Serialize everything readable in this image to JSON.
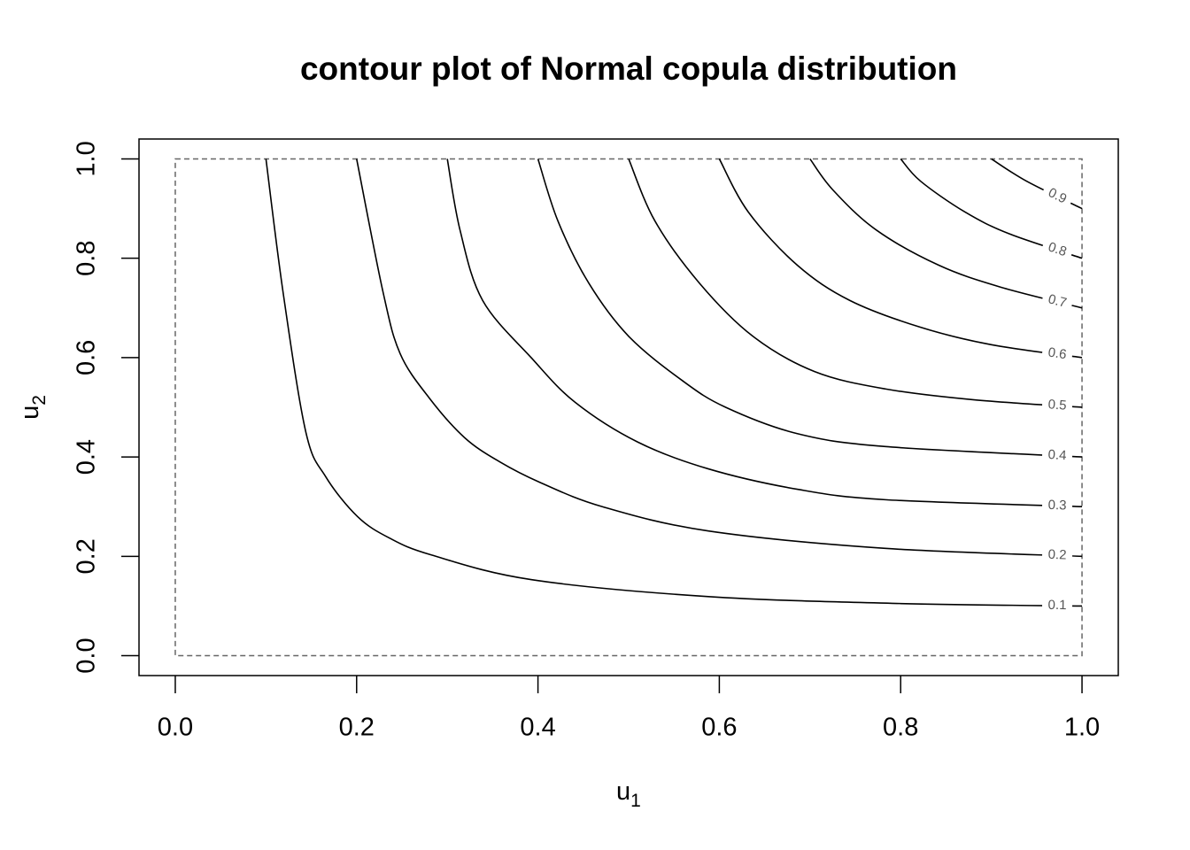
{
  "chart_data": {
    "type": "contour",
    "title": "contour plot of Normal copula distribution",
    "xlabel": {
      "text": "u",
      "sub": "1"
    },
    "ylabel": {
      "text": "u",
      "sub": "2"
    },
    "xlim": [
      -0.04,
      1.04
    ],
    "ylim": [
      -0.04,
      1.04
    ],
    "xticks": [
      {
        "value": 0,
        "label": "0.0"
      },
      0.2,
      0.4,
      0.6,
      0.8,
      {
        "value": 1,
        "label": "1.0"
      }
    ],
    "yticks": [
      {
        "value": 0,
        "label": "0.0"
      },
      0.2,
      0.4,
      0.6,
      0.8,
      {
        "value": 1,
        "label": "1.0"
      }
    ],
    "color": "#000000",
    "series": [
      {
        "level": 0.1,
        "x": [
          0.1,
          0.119,
          0.144,
          0.166,
          0.201,
          0.236,
          0.282,
          0.393,
          0.588,
          0.8,
          1.0
        ],
        "y": [
          1.0,
          0.73,
          0.45,
          0.36,
          0.28,
          0.237,
          0.203,
          0.153,
          0.119,
          0.105,
          0.1
        ]
      },
      {
        "level": 0.2,
        "x": [
          0.2,
          0.229,
          0.248,
          0.28,
          0.319,
          0.358,
          0.402,
          0.471,
          0.588,
          0.783,
          1.0
        ],
        "y": [
          1.0,
          0.733,
          0.608,
          0.519,
          0.439,
          0.39,
          0.349,
          0.3,
          0.251,
          0.216,
          0.2
        ]
      },
      {
        "level": 0.3,
        "x": [
          0.3,
          0.314,
          0.339,
          0.393,
          0.441,
          0.51,
          0.588,
          0.686,
          0.783,
          1.0
        ],
        "y": [
          1.0,
          0.857,
          0.715,
          0.599,
          0.51,
          0.43,
          0.376,
          0.335,
          0.314,
          0.3
        ]
      },
      {
        "level": 0.4,
        "x": [
          0.4,
          0.422,
          0.456,
          0.5,
          0.559,
          0.607,
          0.686,
          0.783,
          1.0
        ],
        "y": [
          1.0,
          0.875,
          0.75,
          0.643,
          0.554,
          0.5,
          0.447,
          0.421,
          0.4
        ]
      },
      {
        "level": 0.5,
        "x": [
          0.5,
          0.529,
          0.578,
          0.637,
          0.705,
          0.783,
          0.881,
          1.0
        ],
        "y": [
          1.0,
          0.875,
          0.75,
          0.643,
          0.572,
          0.537,
          0.515,
          0.5
        ]
      },
      {
        "level": 0.6,
        "x": [
          0.6,
          0.632,
          0.686,
          0.744,
          0.822,
          0.9,
          1.0
        ],
        "y": [
          1.0,
          0.893,
          0.786,
          0.715,
          0.661,
          0.626,
          0.6
        ]
      },
      {
        "level": 0.7,
        "x": [
          0.7,
          0.725,
          0.773,
          0.842,
          0.91,
          1.0
        ],
        "y": [
          1.0,
          0.938,
          0.857,
          0.786,
          0.742,
          0.7
        ]
      },
      {
        "level": 0.8,
        "x": [
          0.8,
          0.822,
          0.871,
          0.92,
          1.0
        ],
        "y": [
          1.0,
          0.955,
          0.893,
          0.849,
          0.8
        ]
      },
      {
        "level": 0.9,
        "x": [
          0.9,
          0.939,
          1.0
        ],
        "y": [
          1.0,
          0.955,
          0.9
        ]
      }
    ]
  }
}
